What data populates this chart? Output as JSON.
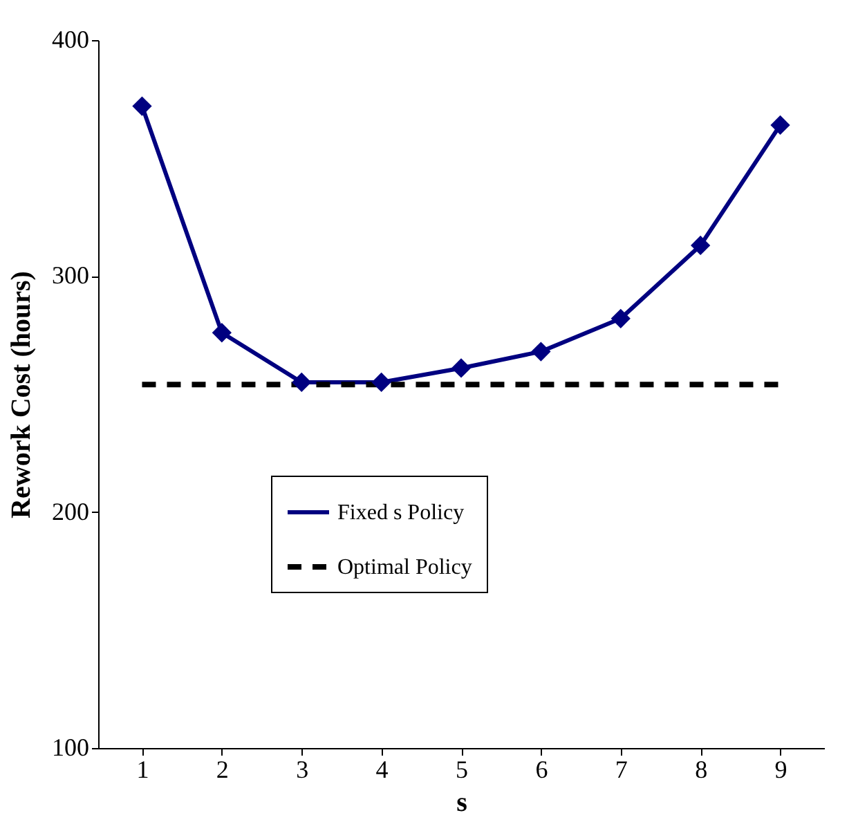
{
  "chart_data": {
    "type": "line",
    "xlabel": "s",
    "ylabel": "Rework Cost (hours)",
    "categories": [
      "1",
      "2",
      "3",
      "4",
      "5",
      "6",
      "7",
      "8",
      "9"
    ],
    "series": [
      {
        "name": "Fixed s Policy",
        "color": "#000080",
        "marker": "diamond",
        "line_style": "solid",
        "values": [
          372,
          276,
          255,
          255,
          261,
          268,
          282,
          313,
          364
        ]
      },
      {
        "name": "Optimal Policy",
        "color": "#000000",
        "marker": "none",
        "line_style": "dashed",
        "values": [
          254,
          254,
          254,
          254,
          254,
          254,
          254,
          254,
          254
        ]
      }
    ],
    "ylim": [
      100,
      400
    ],
    "yticks": [
      100,
      200,
      300,
      400
    ],
    "grid": false,
    "legend": "center"
  }
}
